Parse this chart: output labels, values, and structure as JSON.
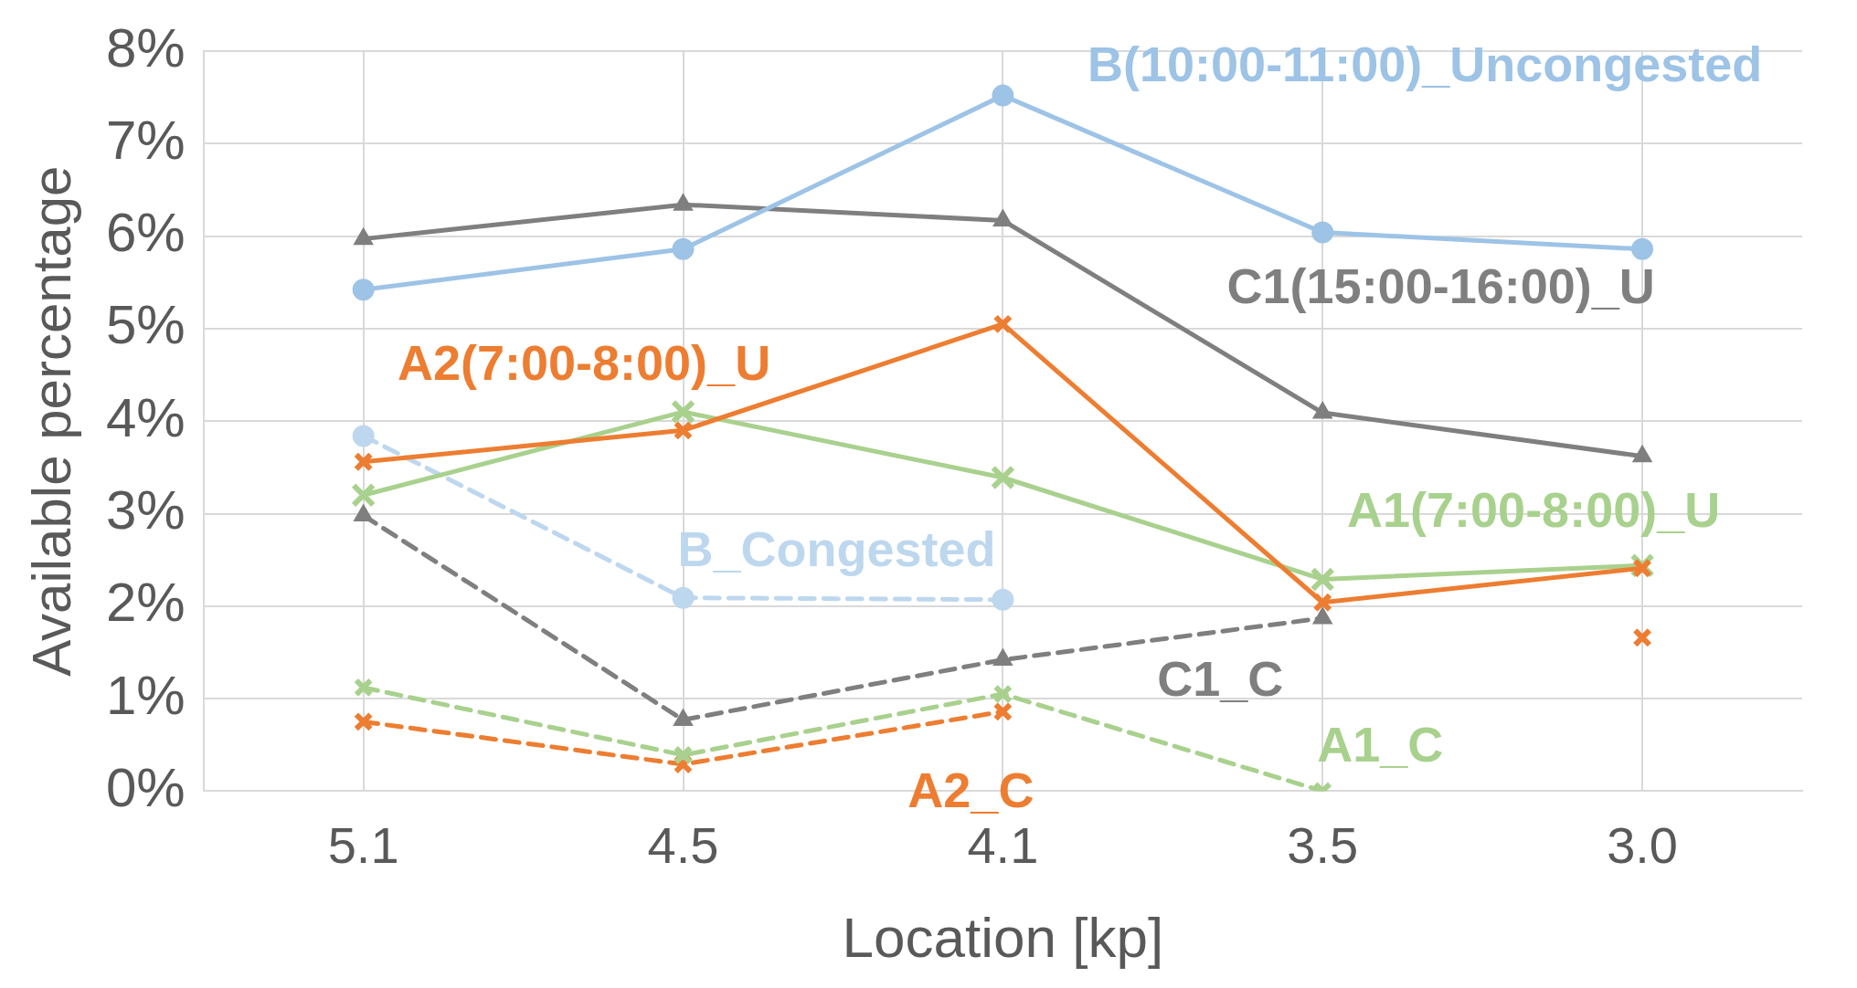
{
  "chart_data": {
    "type": "line",
    "xlabel": "Location [kp]",
    "ylabel": "Available percentage",
    "categories": [
      "5.1",
      "4.5",
      "4.1",
      "3.5",
      "3.0"
    ],
    "ylim": [
      0,
      8
    ],
    "yticks": [
      {
        "value": 0,
        "label": "0%"
      },
      {
        "value": 1,
        "label": "1%"
      },
      {
        "value": 2,
        "label": "2%"
      },
      {
        "value": 3,
        "label": "3%"
      },
      {
        "value": 4,
        "label": "4%"
      },
      {
        "value": 5,
        "label": "5%"
      },
      {
        "value": 6,
        "label": "6%"
      },
      {
        "value": 7,
        "label": "7%"
      },
      {
        "value": 8,
        "label": "8%"
      }
    ],
    "grid": true,
    "legend": false,
    "series": [
      {
        "name": "B(10:00-11:00)_Uncongested",
        "color": "#9dc3e6",
        "marker": "circle",
        "line_style": "solid",
        "values": [
          5.42,
          5.86,
          7.52,
          6.04,
          5.86
        ]
      },
      {
        "name": "C1(15:00-16:00)_U",
        "color": "#7f7f7f",
        "marker": "triangle",
        "line_style": "solid",
        "values": [
          5.97,
          6.34,
          6.17,
          4.09,
          3.62
        ]
      },
      {
        "name": "A2(7:00-8:00)_U",
        "color": "#ed7d31",
        "marker": "cross",
        "line_style": "solid",
        "values": [
          3.56,
          3.9,
          5.05,
          2.04,
          2.41
        ]
      },
      {
        "name": "A1(7:00-8:00)_U",
        "color": "#a9d18e",
        "marker": "cross",
        "line_style": "solid",
        "values": [
          3.2,
          4.1,
          3.39,
          2.29,
          2.44
        ]
      },
      {
        "name": "B_Congested",
        "color": "#bdd7ee",
        "marker": "circle",
        "line_style": "dashed",
        "values": [
          3.84,
          2.09,
          2.07,
          null,
          null
        ]
      },
      {
        "name": "C1_C",
        "color": "#7f7f7f",
        "marker": "triangle",
        "line_style": "dashed",
        "values": [
          2.98,
          0.77,
          1.42,
          1.87,
          null
        ]
      },
      {
        "name": "A1_C",
        "color": "#a9d18e",
        "marker": "cross",
        "line_style": "dashed",
        "values": [
          1.12,
          0.39,
          1.05,
          0.0,
          null
        ]
      },
      {
        "name": "A2_C",
        "color": "#ed7d31",
        "marker": "cross",
        "line_style": "dashed",
        "values": [
          0.75,
          0.29,
          0.86,
          null,
          1.66
        ]
      }
    ]
  }
}
